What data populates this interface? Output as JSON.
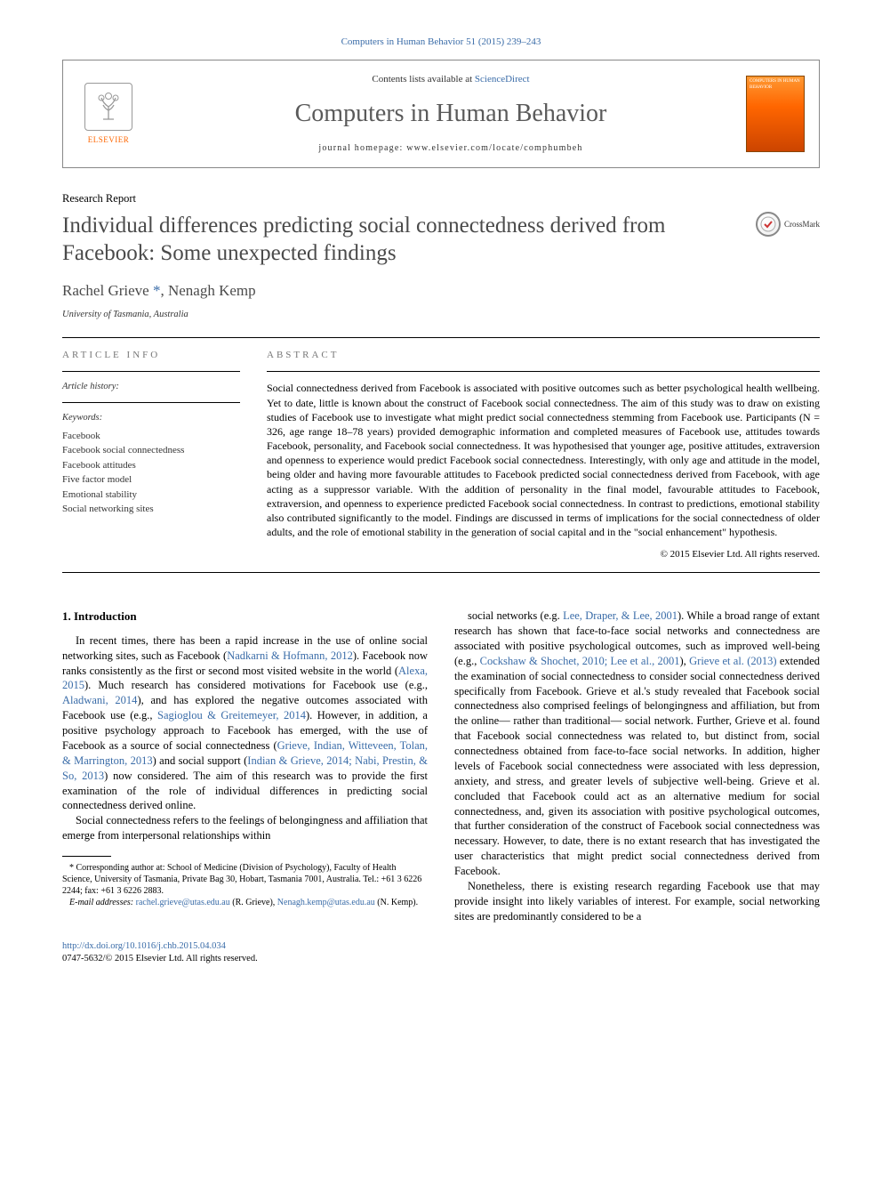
{
  "journal_ref": "Computers in Human Behavior 51 (2015) 239–243",
  "header": {
    "elsevier": "ELSEVIER",
    "contents_prefix": "Contents lists available at ",
    "contents_link": "ScienceDirect",
    "journal_title": "Computers in Human Behavior",
    "homepage_prefix": "journal homepage: ",
    "homepage_url": "www.elsevier.com/locate/comphumbeh",
    "cover_text": "COMPUTERS IN HUMAN BEHAVIOR"
  },
  "article": {
    "type": "Research Report",
    "title": "Individual differences predicting social connectedness derived from Facebook: Some unexpected findings",
    "crossmark": "CrossMark",
    "authors_html": "Rachel Grieve <span class='corr'>*</span>, Nenagh Kemp",
    "affiliation": "University of Tasmania, Australia"
  },
  "info": {
    "label": "ARTICLE INFO",
    "history_label": "Article history:",
    "keywords_label": "Keywords:",
    "keywords": [
      "Facebook",
      "Facebook social connectedness",
      "Facebook attitudes",
      "Five factor model",
      "Emotional stability",
      "Social networking sites"
    ]
  },
  "abstract": {
    "label": "ABSTRACT",
    "text": "Social connectedness derived from Facebook is associated with positive outcomes such as better psychological health wellbeing. Yet to date, little is known about the construct of Facebook social connectedness. The aim of this study was to draw on existing studies of Facebook use to investigate what might predict social connectedness stemming from Facebook use. Participants (N = 326, age range 18–78 years) provided demographic information and completed measures of Facebook use, attitudes towards Facebook, personality, and Facebook social connectedness. It was hypothesised that younger age, positive attitudes, extraversion and openness to experience would predict Facebook social connectedness. Interestingly, with only age and attitude in the model, being older and having more favourable attitudes to Facebook predicted social connectedness derived from Facebook, with age acting as a suppressor variable. With the addition of personality in the final model, favourable attitudes to Facebook, extraversion, and openness to experience predicted Facebook social connectedness. In contrast to predictions, emotional stability also contributed significantly to the model. Findings are discussed in terms of implications for the social connectedness of older adults, and the role of emotional stability in the generation of social capital and in the \"social enhancement\" hypothesis.",
    "copyright": "© 2015 Elsevier Ltd. All rights reserved."
  },
  "body": {
    "heading": "1. Introduction",
    "p1": "In recent times, there has been a rapid increase in the use of online social networking sites, such as Facebook (<span class='cite'>Nadkarni & Hofmann, 2012</span>). Facebook now ranks consistently as the first or second most visited website in the world (<span class='cite'>Alexa, 2015</span>). Much research has considered motivations for Facebook use (e.g., <span class='cite'>Aladwani, 2014</span>), and has explored the negative outcomes associated with Facebook use (e.g., <span class='cite'>Sagioglou & Greitemeyer, 2014</span>). However, in addition, a positive psychology approach to Facebook has emerged, with the use of Facebook as a source of social connectedness (<span class='cite'>Grieve, Indian, Witteveen, Tolan, & Marrington, 2013</span>) and social support (<span class='cite'>Indian & Grieve, 2014; Nabi, Prestin, & So, 2013</span>) now considered. The aim of this research was to provide the first examination of the role of individual differences in predicting social connectedness derived online.",
    "p2": "Social connectedness refers to the feelings of belongingness and affiliation that emerge from interpersonal relationships within",
    "p3": "social networks (e.g. <span class='cite'>Lee, Draper, & Lee, 2001</span>). While a broad range of extant research has shown that face-to-face social networks and connectedness are associated with positive psychological outcomes, such as improved well-being (e.g., <span class='cite'>Cockshaw & Shochet, 2010; Lee et al., 2001</span>), <span class='cite'>Grieve et al. (2013)</span> extended the examination of social connectedness to consider social connectedness derived specifically from Facebook. Grieve et al.'s study revealed that Facebook social connectedness also comprised feelings of belongingness and affiliation, but from the online— rather than traditional— social network. Further, Grieve et al. found that Facebook social connectedness was related to, but distinct from, social connectedness obtained from face-to-face social networks. In addition, higher levels of Facebook social connectedness were associated with less depression, anxiety, and stress, and greater levels of subjective well-being. Grieve et al. concluded that Facebook could act as an alternative medium for social connectedness, and, given its association with positive psychological outcomes, that further consideration of the construct of Facebook social connectedness was necessary. However, to date, there is no extant research that has investigated the user characteristics that might predict social connectedness derived from Facebook.",
    "p4": "Nonetheless, there is existing research regarding Facebook use that may provide insight into likely variables of interest. For example, social networking sites are predominantly considered to be a"
  },
  "footnotes": {
    "corr": "* Corresponding author at: School of Medicine (Division of Psychology), Faculty of Health Science, University of Tasmania, Private Bag 30, Hobart, Tasmania 7001, Australia. Tel.: +61 3 6226 2244; fax: +61 3 6226 2883.",
    "email_label": "E-mail addresses:",
    "email1": "rachel.grieve@utas.edu.au",
    "email1_who": "(R. Grieve),",
    "email2": "Nenagh.kemp@utas.edu.au",
    "email2_who": "(N. Kemp)."
  },
  "footer": {
    "doi": "http://dx.doi.org/10.1016/j.chb.2015.04.034",
    "issn_line": "0747-5632/© 2015 Elsevier Ltd. All rights reserved."
  },
  "colors": {
    "link": "#3a6ca8",
    "elsevier_orange": "#ff6600",
    "title_gray": "#4a4a4a"
  }
}
